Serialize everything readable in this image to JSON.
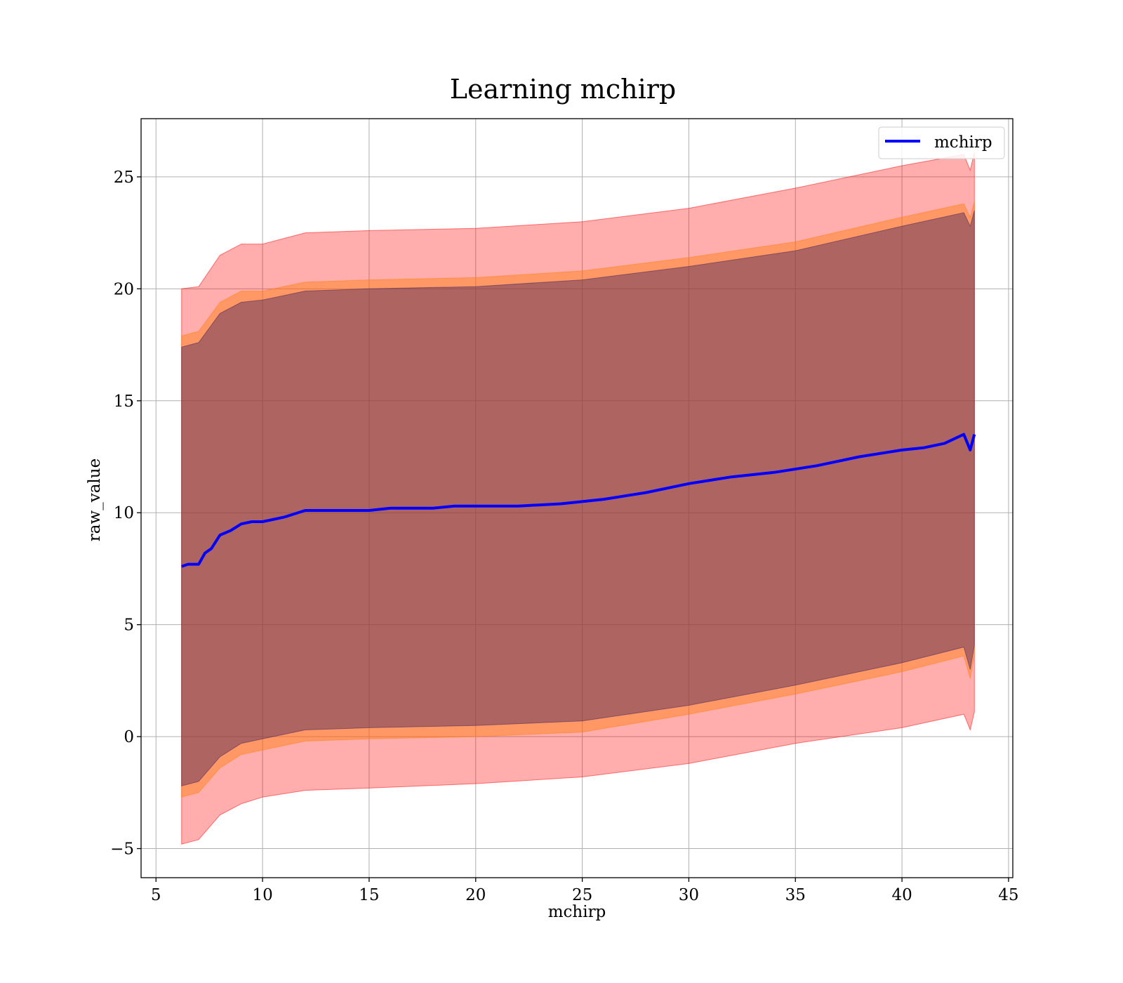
{
  "chart_data": {
    "type": "line",
    "title": "Learning mchirp",
    "xlabel": "mchirp",
    "ylabel": "raw_value",
    "xlim": [
      4.3,
      45.2
    ],
    "ylim": [
      -6.3,
      27.6
    ],
    "xticks": [
      5,
      10,
      15,
      20,
      25,
      30,
      35,
      40,
      45
    ],
    "yticks": [
      -5,
      0,
      5,
      10,
      15,
      20,
      25
    ],
    "xtick_labels": [
      "5",
      "10",
      "15",
      "20",
      "25",
      "30",
      "35",
      "40",
      "45"
    ],
    "ytick_labels": [
      "−5",
      "0",
      "5",
      "10",
      "15",
      "20",
      "25"
    ],
    "grid": true,
    "legend": {
      "position": "top-right",
      "entries": [
        "mchirp"
      ]
    },
    "colors": {
      "line": "#0000ff",
      "band_outer": "#ff0000",
      "band_middle": "#ff7f0e",
      "band_inner": "#3d1f5c",
      "grid": "#b0b0b0"
    },
    "series": [
      {
        "name": "mchirp",
        "x": [
          6.2,
          6.5,
          7.0,
          7.3,
          7.6,
          8.0,
          8.5,
          9.0,
          9.5,
          10.0,
          11.0,
          12.0,
          13.0,
          14.0,
          15.0,
          16.0,
          17.0,
          18.0,
          19.0,
          20.0,
          22.0,
          24.0,
          26.0,
          28.0,
          30.0,
          32.0,
          34.0,
          36.0,
          38.0,
          40.0,
          41.0,
          42.0,
          42.9,
          43.2,
          43.4
        ],
        "y": [
          7.6,
          7.7,
          7.7,
          8.2,
          8.4,
          9.0,
          9.2,
          9.5,
          9.6,
          9.6,
          9.8,
          10.1,
          10.1,
          10.1,
          10.1,
          10.2,
          10.2,
          10.2,
          10.3,
          10.3,
          10.3,
          10.4,
          10.6,
          10.9,
          11.3,
          11.6,
          11.8,
          12.1,
          12.5,
          12.8,
          12.9,
          13.1,
          13.5,
          12.8,
          13.5
        ]
      }
    ],
    "bands": [
      {
        "level": "outer",
        "x": [
          6.2,
          7.0,
          8.0,
          9.0,
          10.0,
          12.0,
          15.0,
          20.0,
          25.0,
          30.0,
          35.0,
          40.0,
          42.9,
          43.2,
          43.4
        ],
        "upper": [
          20.0,
          20.1,
          21.5,
          22.0,
          22.0,
          22.5,
          22.6,
          22.7,
          23.0,
          23.6,
          24.5,
          25.5,
          26.0,
          25.3,
          26.1
        ],
        "lower": [
          -4.8,
          -4.6,
          -3.5,
          -3.0,
          -2.7,
          -2.4,
          -2.3,
          -2.1,
          -1.8,
          -1.2,
          -0.3,
          0.4,
          1.0,
          0.3,
          1.1
        ]
      },
      {
        "level": "middle",
        "x": [
          6.2,
          7.0,
          8.0,
          9.0,
          10.0,
          12.0,
          15.0,
          20.0,
          25.0,
          30.0,
          35.0,
          40.0,
          42.9,
          43.2,
          43.4
        ],
        "upper": [
          17.9,
          18.1,
          19.4,
          19.9,
          19.9,
          20.3,
          20.4,
          20.5,
          20.8,
          21.4,
          22.1,
          23.2,
          23.8,
          23.2,
          23.9
        ],
        "lower": [
          -2.7,
          -2.5,
          -1.4,
          -0.8,
          -0.6,
          -0.2,
          -0.1,
          0.0,
          0.2,
          1.0,
          1.9,
          2.9,
          3.6,
          2.6,
          3.7
        ]
      },
      {
        "level": "inner",
        "x": [
          6.2,
          7.0,
          8.0,
          9.0,
          10.0,
          12.0,
          15.0,
          20.0,
          25.0,
          30.0,
          35.0,
          40.0,
          42.9,
          43.2,
          43.4
        ],
        "upper": [
          17.4,
          17.6,
          18.9,
          19.4,
          19.5,
          19.9,
          20.0,
          20.1,
          20.4,
          21.0,
          21.7,
          22.8,
          23.4,
          22.8,
          23.5
        ],
        "lower": [
          -2.2,
          -2.0,
          -0.9,
          -0.3,
          -0.1,
          0.3,
          0.4,
          0.5,
          0.7,
          1.4,
          2.3,
          3.3,
          4.0,
          3.0,
          4.1
        ]
      }
    ]
  }
}
